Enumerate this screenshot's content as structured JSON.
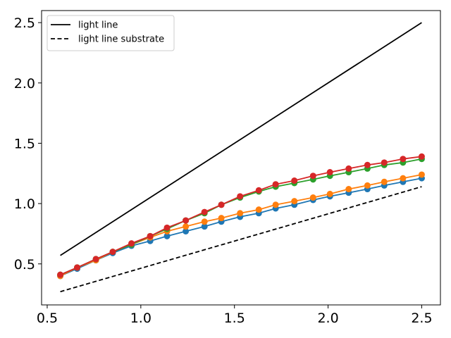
{
  "chart_data": {
    "type": "line",
    "title": "",
    "xlabel": "",
    "ylabel": "",
    "xlim": [
      0.47,
      2.6
    ],
    "ylim": [
      0.16,
      2.6
    ],
    "xticks": [
      0.5,
      1.0,
      1.5,
      2.0,
      2.5
    ],
    "xtick_labels": [
      "0.5",
      "1.0",
      "1.5",
      "2.0",
      "2.5"
    ],
    "yticks": [
      0.5,
      1.0,
      1.5,
      2.0,
      2.5
    ],
    "ytick_labels": [
      "0.5",
      "1.0",
      "1.5",
      "2.0",
      "2.5"
    ],
    "grid": false,
    "legend_position": "top-left",
    "x": [
      0.57,
      0.66,
      0.76,
      0.85,
      0.95,
      1.05,
      1.14,
      1.24,
      1.34,
      1.43,
      1.53,
      1.63,
      1.72,
      1.82,
      1.92,
      2.01,
      2.11,
      2.21,
      2.3,
      2.4,
      2.5
    ],
    "series": [
      {
        "name": "light line",
        "style": "solid",
        "color": "#000000",
        "markers": false,
        "x": [
          0.57,
          2.5
        ],
        "values": [
          0.57,
          2.5
        ]
      },
      {
        "name": "light line substrate",
        "style": "dashed",
        "color": "#000000",
        "markers": false,
        "x": [
          0.57,
          2.5
        ],
        "values": [
          0.27,
          1.14
        ]
      },
      {
        "color": "#1f77b4",
        "markers": true,
        "values": [
          0.4,
          0.46,
          0.53,
          0.59,
          0.65,
          0.69,
          0.73,
          0.77,
          0.81,
          0.85,
          0.89,
          0.92,
          0.96,
          0.99,
          1.03,
          1.06,
          1.09,
          1.12,
          1.15,
          1.18,
          1.21
        ]
      },
      {
        "color": "#ff7f0e",
        "markers": true,
        "values": [
          0.4,
          0.47,
          0.53,
          0.6,
          0.66,
          0.72,
          0.77,
          0.81,
          0.85,
          0.88,
          0.92,
          0.95,
          0.99,
          1.02,
          1.05,
          1.08,
          1.12,
          1.15,
          1.18,
          1.21,
          1.24
        ]
      },
      {
        "color": "#2ca02c",
        "markers": true,
        "values": [
          0.41,
          0.47,
          0.54,
          0.6,
          0.66,
          0.73,
          0.79,
          0.86,
          0.92,
          0.99,
          1.05,
          1.1,
          1.14,
          1.17,
          1.2,
          1.23,
          1.26,
          1.29,
          1.32,
          1.34,
          1.37
        ]
      },
      {
        "color": "#d62728",
        "markers": true,
        "values": [
          0.41,
          0.47,
          0.54,
          0.6,
          0.67,
          0.73,
          0.8,
          0.86,
          0.93,
          0.99,
          1.06,
          1.11,
          1.16,
          1.19,
          1.23,
          1.26,
          1.29,
          1.32,
          1.34,
          1.37,
          1.39
        ]
      }
    ]
  }
}
